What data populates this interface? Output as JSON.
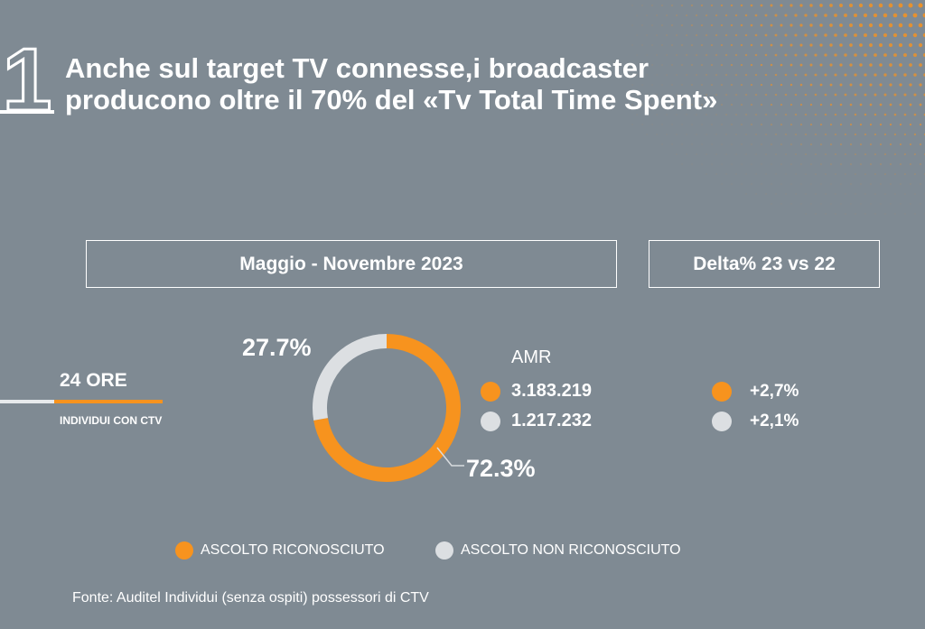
{
  "slide": {
    "number": "1",
    "title_line1": "Anche sul target TV connesse,i broadcaster",
    "title_line2": "producono oltre il 70% del «Tv Total Time Spent»"
  },
  "headers": {
    "period": "Maggio - Novembre 2023",
    "delta": "Delta% 23 vs 22"
  },
  "target": {
    "hours": "24 ORE",
    "individuals": "INDIVIDUI CON CTV"
  },
  "amr": {
    "title": "AMR",
    "rows": [
      {
        "value": "3.183.219",
        "color": "#f7931e"
      },
      {
        "value": "1.217.232",
        "color": "#dcdfe2"
      }
    ]
  },
  "deltas": [
    {
      "value": "+2,7%",
      "color": "#f7931e"
    },
    {
      "value": "+2,1%",
      "color": "#dcdfe2"
    }
  ],
  "legend": [
    {
      "label": "ASCOLTO RICONOSCIUTO",
      "color": "#f7931e"
    },
    {
      "label": "ASCOLTO NON RICONOSCIUTO",
      "color": "#dcdfe2"
    }
  ],
  "source": "Fonte: Auditel Individui (senza ospiti) possessori di CTV",
  "colors": {
    "background": "#7f8a93",
    "accent": "#f7931e",
    "secondary": "#dcdfe2"
  },
  "chart_data": {
    "type": "pie",
    "style": "donut",
    "categories": [
      "ASCOLTO RICONOSCIUTO",
      "ASCOLTO NON RICONOSCIUTO"
    ],
    "values": [
      72.3,
      27.7
    ],
    "labels": [
      "72.3%",
      "27.7%"
    ],
    "colors": [
      "#f7931e",
      "#dcdfe2"
    ]
  }
}
